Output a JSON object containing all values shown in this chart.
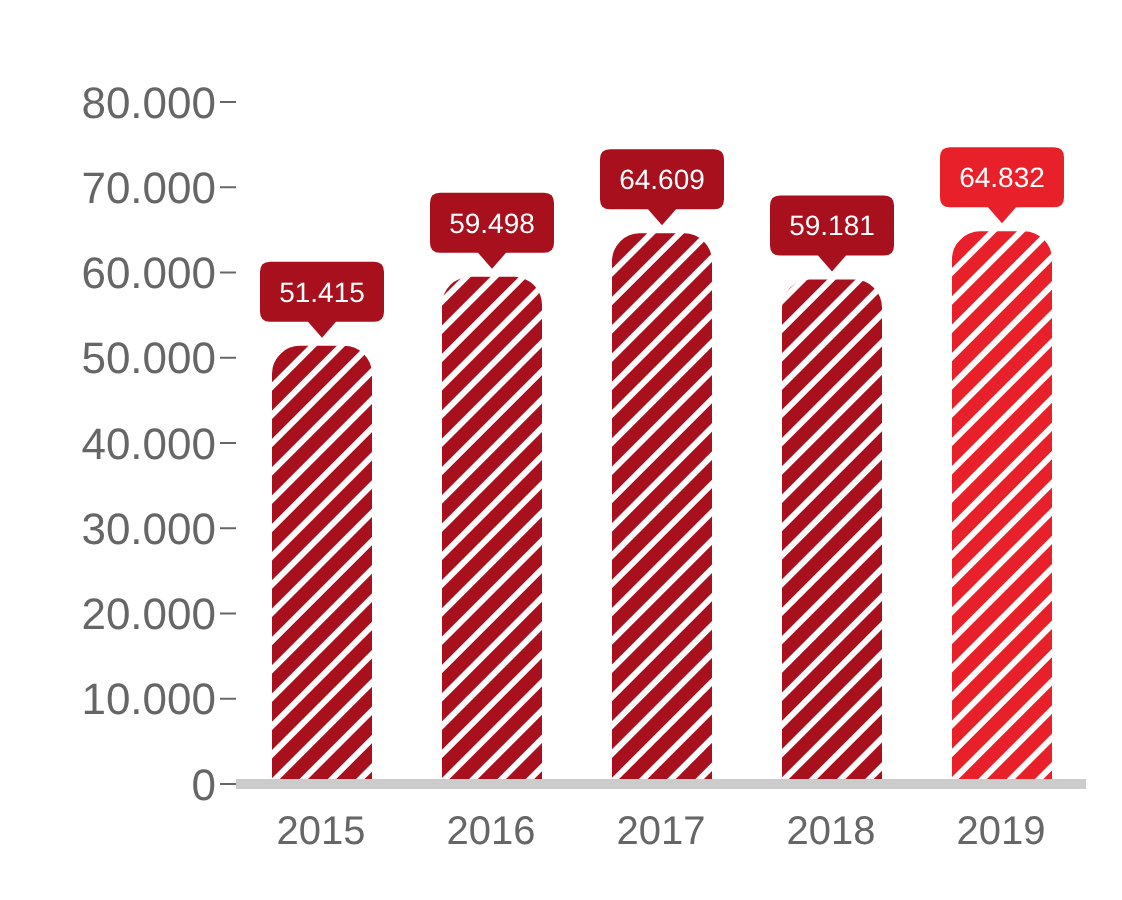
{
  "chart_data": {
    "type": "bar",
    "categories": [
      "2015",
      "2016",
      "2017",
      "2018",
      "2019"
    ],
    "values": [
      51415,
      59498,
      64609,
      59181,
      64832
    ],
    "value_labels": [
      "51.415",
      "59.498",
      "64.609",
      "59.181",
      "64.832"
    ],
    "colors": [
      "#a8101e",
      "#a8101e",
      "#a8101e",
      "#a8101e",
      "#e8202a"
    ],
    "ylim": [
      0,
      80000
    ],
    "yticks": [
      {
        "value": 0,
        "label": "0"
      },
      {
        "value": 10000,
        "label": "10.000"
      },
      {
        "value": 20000,
        "label": "20.000"
      },
      {
        "value": 30000,
        "label": "30.000"
      },
      {
        "value": 40000,
        "label": "40.000"
      },
      {
        "value": 50000,
        "label": "50.000"
      },
      {
        "value": 60000,
        "label": "60.000"
      },
      {
        "value": 70000,
        "label": "70.000"
      },
      {
        "value": 80000,
        "label": "80.000"
      }
    ],
    "grid": false,
    "legend": false
  }
}
